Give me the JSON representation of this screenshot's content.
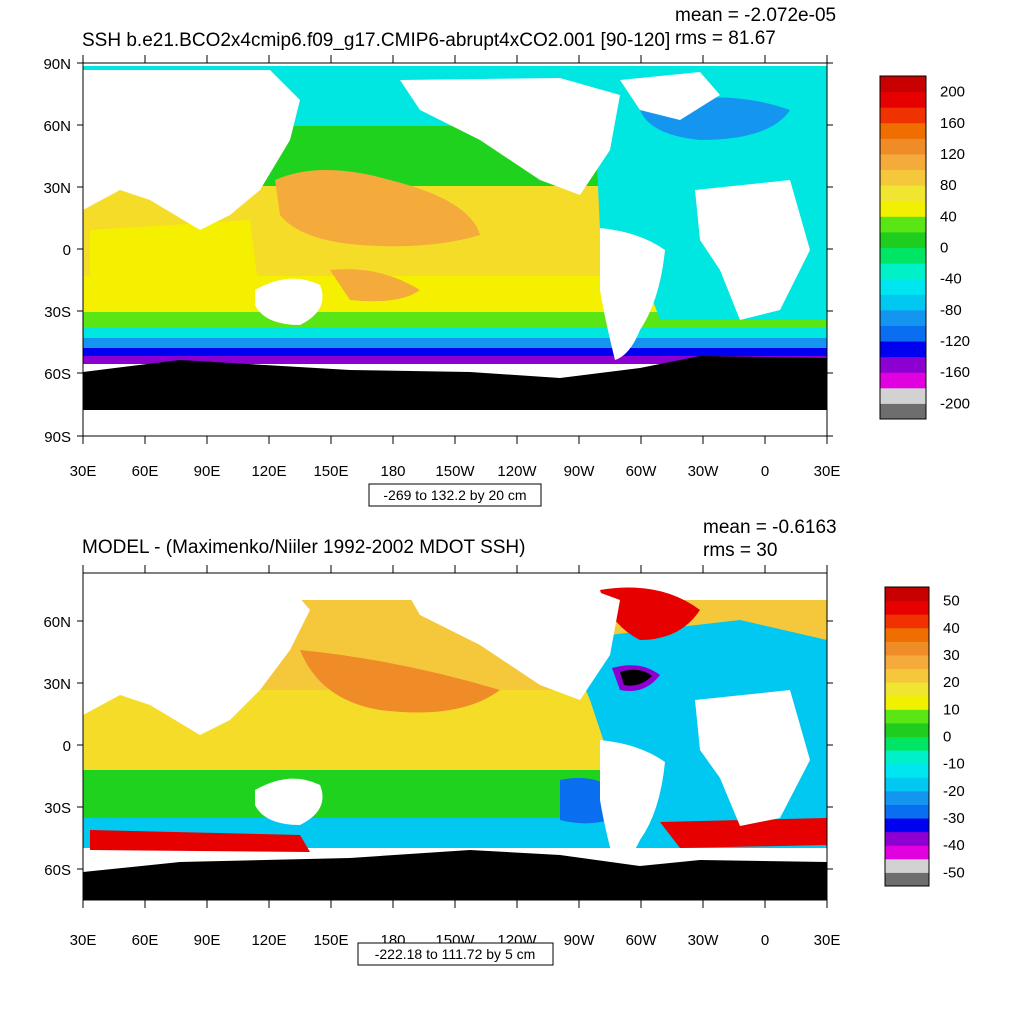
{
  "panels": [
    {
      "title": "SSH b.e21.BCO2x4cmip6.f09_g17.CMIP6-abrupt4xCO2.001 [90-120]",
      "mean_text": "mean = -2.072e-05",
      "rms_text": "rms = 81.67",
      "range_text": "-269 to 132.2 by 20 cm",
      "lat_labels": [
        "90N",
        "60N",
        "30N",
        "0",
        "30S",
        "60S",
        "90S"
      ],
      "lon_labels": [
        "30E",
        "60E",
        "90E",
        "120E",
        "150E",
        "180",
        "150W",
        "120W",
        "90W",
        "60W",
        "30W",
        "0",
        "30E"
      ],
      "colorbar_labels": [
        "200",
        "160",
        "120",
        "80",
        "40",
        "0",
        "-40",
        "-80",
        "-120",
        "-160",
        "-200"
      ]
    },
    {
      "title": "MODEL - (Maximenko/Niiler 1992-2002 MDOT SSH)",
      "mean_text": "mean = -0.6163",
      "rms_text": "rms = 30",
      "range_text": "-222.18 to 111.72 by 5 cm",
      "lat_labels": [
        "60N",
        "30N",
        "0",
        "30S",
        "60S"
      ],
      "lon_labels": [
        "30E",
        "60E",
        "90E",
        "120E",
        "150E",
        "180",
        "150W",
        "120W",
        "90W",
        "60W",
        "30W",
        "0",
        "30E"
      ],
      "colorbar_labels": [
        "50",
        "40",
        "30",
        "20",
        "10",
        "0",
        "-10",
        "-20",
        "-30",
        "-40",
        "-50"
      ]
    }
  ],
  "colorbar_colors": [
    "#6e6e6e",
    "#d2d2d2",
    "#e000e0",
    "#8c00d2",
    "#0000f0",
    "#0a6ef0",
    "#1496f0",
    "#00c8f0",
    "#00e6f0",
    "#00f0c8",
    "#00e664",
    "#1ecd1e",
    "#5ae614",
    "#f0f000",
    "#f0e632",
    "#f5c83c",
    "#f5aa3c",
    "#f08c28",
    "#f06e00",
    "#f03200",
    "#e60000",
    "#c80000"
  ],
  "colors": {
    "land": "#ffffff",
    "antarctica": "#000000",
    "frame": "#000000"
  }
}
